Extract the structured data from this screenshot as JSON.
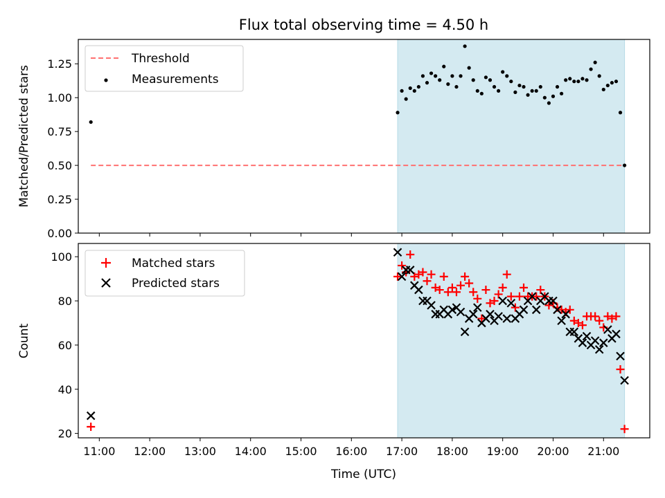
{
  "chart_data": {
    "title": "Flux total observing time = 4.50 h",
    "type": "scatter",
    "xlabel": "Time (UTC)",
    "x_ticks": [
      "11:00",
      "12:00",
      "13:00",
      "14:00",
      "15:00",
      "16:00",
      "17:00",
      "18:00",
      "19:00",
      "20:00",
      "21:00"
    ],
    "xlim": [
      "10:35",
      "21:55"
    ],
    "shaded_interval": {
      "start": "16:55",
      "end": "21:25",
      "color": "#d4eaf1"
    },
    "panels": [
      {
        "ylabel": "Matched/Predicted stars",
        "ylim": [
          0,
          1.43
        ],
        "y_ticks": [
          "0.00",
          "0.25",
          "0.50",
          "0.75",
          "1.00",
          "1.25"
        ],
        "legend": {
          "placement": "upper-left",
          "entries": [
            "Threshold",
            "Measurements"
          ]
        },
        "series": [
          {
            "name": "Threshold",
            "kind": "dashed-line",
            "color": "#ff7070",
            "x": [
              "10:50",
              "21:25"
            ],
            "y": [
              0.5,
              0.5
            ]
          },
          {
            "name": "Measurements",
            "kind": "dot",
            "color": "#000000",
            "x": [
              "10:50",
              "16:55",
              "17:00",
              "17:05",
              "17:10",
              "17:15",
              "17:20",
              "17:25",
              "17:30",
              "17:35",
              "17:40",
              "17:45",
              "17:50",
              "17:55",
              "18:00",
              "18:05",
              "18:10",
              "18:15",
              "18:20",
              "18:25",
              "18:30",
              "18:35",
              "18:40",
              "18:45",
              "18:50",
              "18:55",
              "19:00",
              "19:05",
              "19:10",
              "19:15",
              "19:20",
              "19:25",
              "19:30",
              "19:35",
              "19:40",
              "19:45",
              "19:50",
              "19:55",
              "20:00",
              "20:05",
              "20:10",
              "20:15",
              "20:20",
              "20:25",
              "20:30",
              "20:35",
              "20:40",
              "20:45",
              "20:50",
              "20:55",
              "21:00",
              "21:05",
              "21:10",
              "21:15",
              "21:20",
              "21:25"
            ],
            "y": [
              0.82,
              0.89,
              1.05,
              0.99,
              1.07,
              1.05,
              1.08,
              1.16,
              1.11,
              1.18,
              1.16,
              1.13,
              1.23,
              1.1,
              1.16,
              1.08,
              1.16,
              1.38,
              1.22,
              1.13,
              1.05,
              1.03,
              1.15,
              1.13,
              1.08,
              1.05,
              1.19,
              1.16,
              1.12,
              1.04,
              1.09,
              1.08,
              1.02,
              1.05,
              1.05,
              1.08,
              1.0,
              0.96,
              1.01,
              1.08,
              1.03,
              1.13,
              1.14,
              1.12,
              1.12,
              1.14,
              1.13,
              1.21,
              1.26,
              1.16,
              1.06,
              1.09,
              1.11,
              1.12,
              0.89,
              0.5
            ]
          }
        ]
      },
      {
        "ylabel": "Count",
        "ylim": [
          18,
          106
        ],
        "y_ticks": [
          "20",
          "40",
          "60",
          "80",
          "100"
        ],
        "legend": {
          "placement": "upper-left",
          "entries": [
            "Matched stars",
            "Predicted stars"
          ]
        },
        "series": [
          {
            "name": "Matched stars",
            "kind": "plus",
            "color": "#ff0000",
            "x": [
              "10:50",
              "16:55",
              "17:00",
              "17:05",
              "17:10",
              "17:15",
              "17:20",
              "17:25",
              "17:30",
              "17:35",
              "17:40",
              "17:45",
              "17:50",
              "17:55",
              "18:00",
              "18:05",
              "18:10",
              "18:15",
              "18:20",
              "18:25",
              "18:30",
              "18:35",
              "18:40",
              "18:45",
              "18:50",
              "18:55",
              "19:00",
              "19:05",
              "19:10",
              "19:15",
              "19:20",
              "19:25",
              "19:30",
              "19:35",
              "19:40",
              "19:45",
              "19:50",
              "19:55",
              "20:00",
              "20:05",
              "20:10",
              "20:15",
              "20:20",
              "20:25",
              "20:30",
              "20:35",
              "20:40",
              "20:45",
              "20:50",
              "20:55",
              "21:00",
              "21:05",
              "21:10",
              "21:15",
              "21:20",
              "21:25"
            ],
            "y": [
              23,
              91,
              96,
              93,
              101,
              91,
              92,
              93,
              89,
              92,
              86,
              85,
              91,
              84,
              86,
              84,
              87,
              91,
              88,
              84,
              81,
              72,
              85,
              79,
              80,
              83,
              86,
              92,
              82,
              77,
              82,
              86,
              82,
              82,
              82,
              85,
              82,
              78,
              79,
              77,
              76,
              75,
              76,
              71,
              70,
              69,
              73,
              73,
              73,
              71,
              68,
              73,
              72,
              73,
              49,
              22
            ]
          },
          {
            "name": "Predicted stars",
            "kind": "x",
            "color": "#000000",
            "x": [
              "10:50",
              "16:55",
              "17:00",
              "17:05",
              "17:10",
              "17:15",
              "17:20",
              "17:25",
              "17:30",
              "17:35",
              "17:40",
              "17:45",
              "17:50",
              "17:55",
              "18:00",
              "18:05",
              "18:10",
              "18:15",
              "18:20",
              "18:25",
              "18:30",
              "18:35",
              "18:40",
              "18:45",
              "18:50",
              "18:55",
              "19:00",
              "19:05",
              "19:10",
              "19:15",
              "19:20",
              "19:25",
              "19:30",
              "19:35",
              "19:40",
              "19:45",
              "19:50",
              "19:55",
              "20:00",
              "20:05",
              "20:10",
              "20:15",
              "20:20",
              "20:25",
              "20:30",
              "20:35",
              "20:40",
              "20:45",
              "20:50",
              "20:55",
              "21:00",
              "21:05",
              "21:10",
              "21:15",
              "21:20",
              "21:25"
            ],
            "y": [
              28,
              102,
              91,
              94,
              94,
              87,
              85,
              80,
              80,
              78,
              74,
              74,
              76,
              74,
              76,
              77,
              75,
              66,
              72,
              74,
              77,
              70,
              72,
              74,
              71,
              73,
              80,
              72,
              79,
              72,
              74,
              76,
              80,
              82,
              76,
              80,
              82,
              80,
              80,
              76,
              71,
              74,
              66,
              66,
              63,
              61,
              64,
              60,
              62,
              58,
              61,
              67,
              63,
              65,
              55,
              44
            ]
          }
        ]
      }
    ]
  }
}
